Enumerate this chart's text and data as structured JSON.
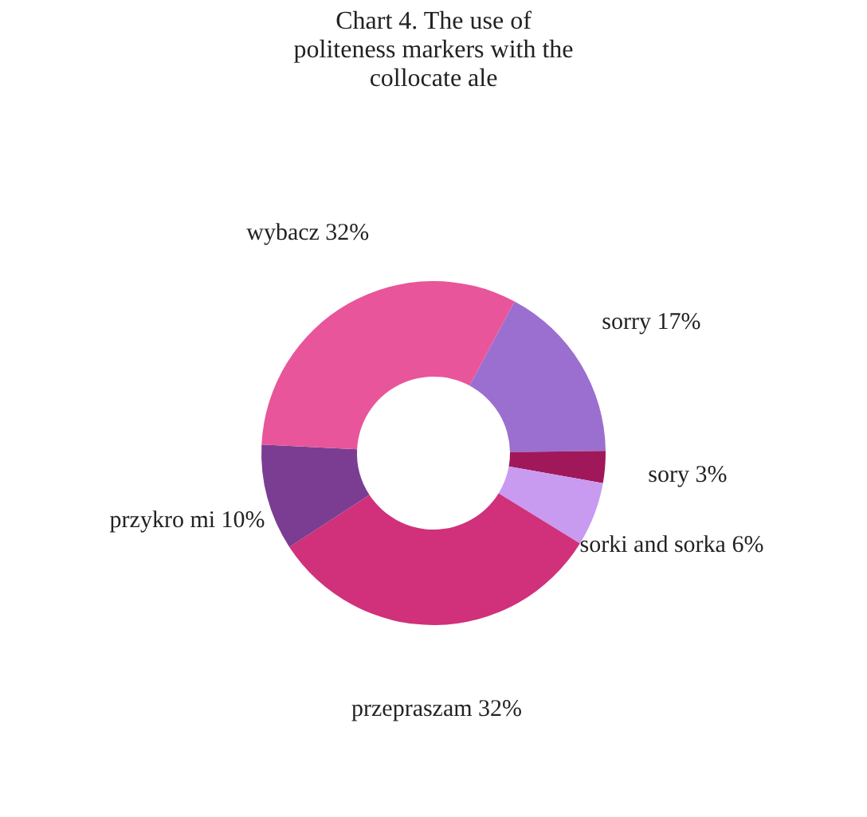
{
  "chart_data": {
    "type": "donut",
    "title": "Chart 4. The use of politeness markers with the collocate ale",
    "categories": [
      "sorry",
      "sory",
      "sorki and sorka",
      "przepraszam",
      "przykro mi",
      "wybacz"
    ],
    "values": [
      17,
      3,
      6,
      32,
      10,
      32
    ],
    "value_labels": [
      "17%",
      "3%",
      "6%",
      "32%",
      "10%",
      "32%"
    ],
    "colors": [
      "#9b6fcf",
      "#a0185a",
      "#c89af0",
      "#d0317a",
      "#7b3d91",
      "#e8559a"
    ],
    "legend": false
  }
}
